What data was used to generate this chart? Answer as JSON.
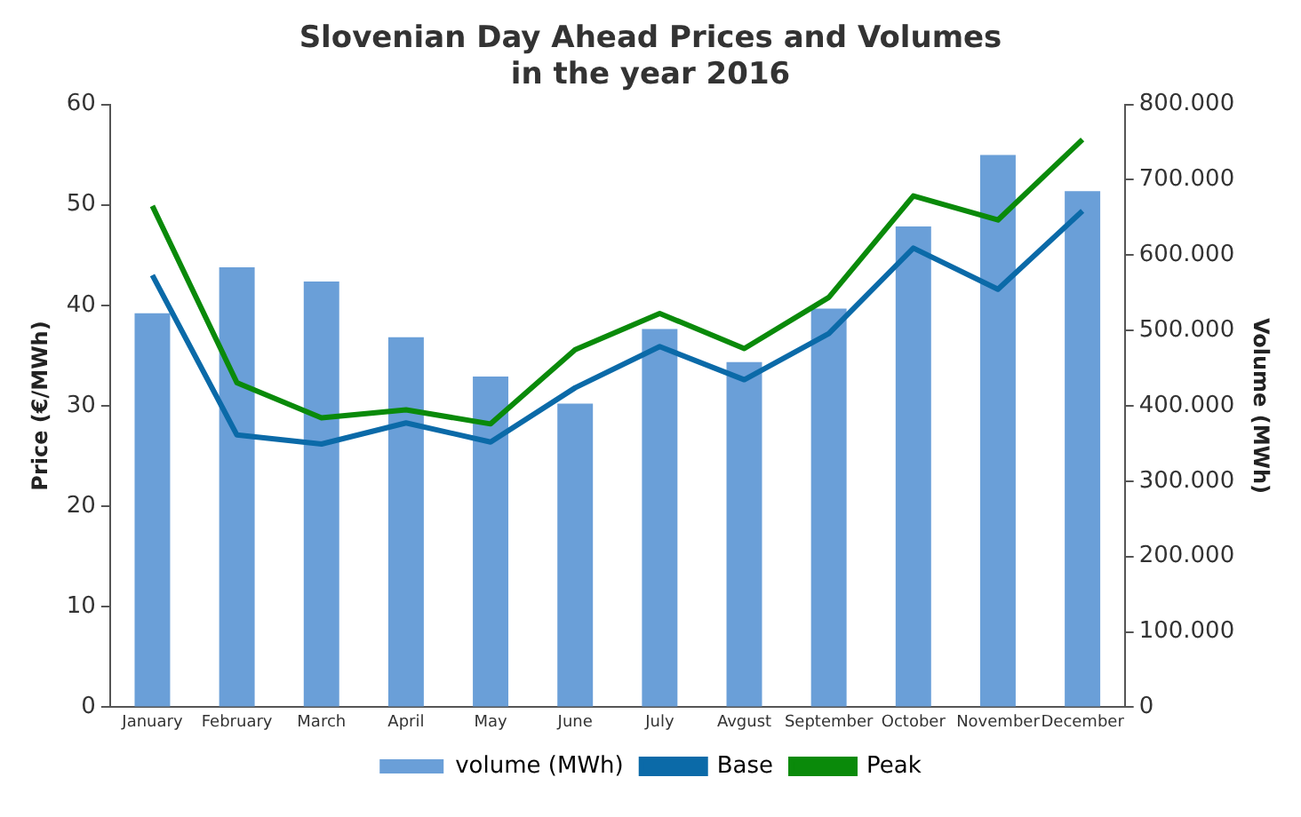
{
  "chart_data": {
    "type": "bar",
    "title": [
      "Slovenian Day Ahead Prices and Volumes",
      "in the year 2016"
    ],
    "ylabel": "Price (€/MWh)",
    "y2label": "Volume (MWh)",
    "categories": [
      "January",
      "February",
      "March",
      "April",
      "May",
      "June",
      "July",
      "Avgust",
      "September",
      "October",
      "November",
      "December"
    ],
    "series": [
      {
        "name": "volume (MWh)",
        "axis": "y2",
        "color": "#6a9fd8",
        "values": [
          523000,
          584000,
          565000,
          491000,
          439000,
          403000,
          502000,
          458000,
          529000,
          638000,
          733000,
          685000
        ]
      },
      {
        "name": "Base",
        "type": "line",
        "color": "#0b6aa8",
        "values": [
          43.0,
          27.1,
          26.2,
          28.3,
          26.4,
          31.8,
          35.9,
          32.6,
          37.2,
          45.7,
          41.6,
          49.4
        ]
      },
      {
        "name": "Peak",
        "type": "line",
        "color": "#0a8a0a",
        "values": [
          49.9,
          32.3,
          28.8,
          29.6,
          28.2,
          35.6,
          39.2,
          35.7,
          40.8,
          50.9,
          48.5,
          56.5
        ]
      }
    ],
    "ylim": [
      0,
      60
    ],
    "yticks": [
      0,
      10,
      20,
      30,
      40,
      50,
      60
    ],
    "y2lim": [
      0,
      800000
    ],
    "y2ticks": [
      {
        "value": 0,
        "label": "0"
      },
      {
        "value": 100000,
        "label": "100.000"
      },
      {
        "value": 200000,
        "label": "200.000"
      },
      {
        "value": 300000,
        "label": "300.000"
      },
      {
        "value": 400000,
        "label": "400.000"
      },
      {
        "value": 500000,
        "label": "500.000"
      },
      {
        "value": 600000,
        "label": "600.000"
      },
      {
        "value": 700000,
        "label": "700.000"
      },
      {
        "value": 800000,
        "label": "800.000"
      }
    ],
    "grid": false,
    "legend": "bottom",
    "marker": "none",
    "line_style": "solid"
  }
}
